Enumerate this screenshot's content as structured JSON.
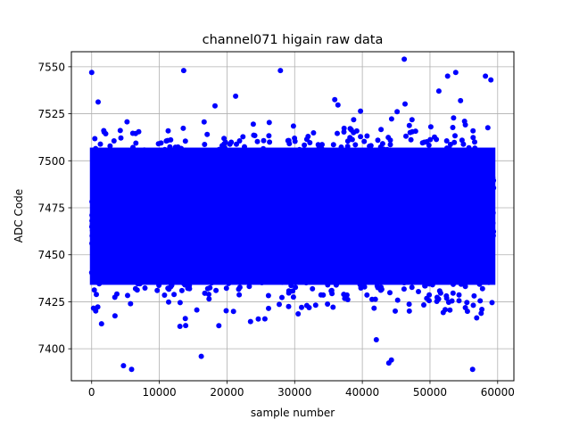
{
  "chart_data": {
    "type": "scatter",
    "title": "channel071 higain raw data",
    "xlabel": "sample number",
    "ylabel": "ADC Code",
    "xlim": [
      -3000,
      62400
    ],
    "ylim": [
      7383,
      7558
    ],
    "x_ticks": [
      0,
      10000,
      20000,
      30000,
      40000,
      50000,
      60000
    ],
    "y_ticks": [
      7400,
      7425,
      7450,
      7475,
      7500,
      7525,
      7550
    ],
    "grid": true,
    "series": [
      {
        "color": "#0000ff",
        "n_samples": 60000,
        "x_range": [
          0,
          59400
        ],
        "y_range": [
          7389,
          7554
        ],
        "dense_band": [
          7434,
          7507
        ],
        "notable_points": [
          {
            "x": 0,
            "y": 7547
          },
          {
            "x": 13600,
            "y": 7548
          },
          {
            "x": 27900,
            "y": 7548
          },
          {
            "x": 46200,
            "y": 7554
          },
          {
            "x": 52600,
            "y": 7545
          },
          {
            "x": 53800,
            "y": 7547
          },
          {
            "x": 58200,
            "y": 7545
          },
          {
            "x": 59000,
            "y": 7543
          },
          {
            "x": 5900,
            "y": 7389
          },
          {
            "x": 4700,
            "y": 7391
          },
          {
            "x": 56300,
            "y": 7389
          },
          {
            "x": 44300,
            "y": 7394
          },
          {
            "x": 16200,
            "y": 7396
          }
        ]
      }
    ]
  }
}
